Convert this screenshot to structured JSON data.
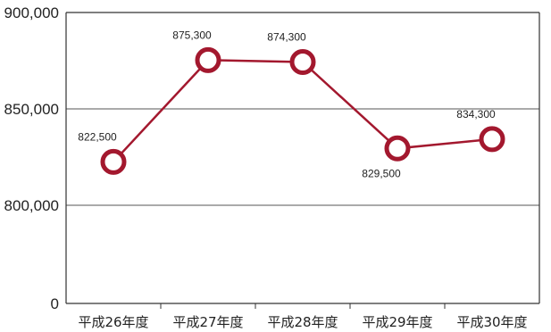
{
  "chart_data": {
    "type": "line",
    "title": "",
    "xlabel": "",
    "ylabel": "",
    "categories": [
      "平成26年度",
      "平成27年度",
      "平成28年度",
      "平成29年度",
      "平成30年度"
    ],
    "series": [
      {
        "values": [
          822500,
          875300,
          874300,
          829500,
          834300
        ],
        "labels": [
          "822,500",
          "875,300",
          "874,300",
          "829,500",
          "834,300"
        ]
      }
    ],
    "y_ticks": [
      {
        "value": 0,
        "label": "0"
      },
      {
        "value": 800000,
        "label": "800,000"
      },
      {
        "value": 850000,
        "label": "850,000"
      },
      {
        "value": 900000,
        "label": "900,000"
      }
    ],
    "axis_break": "y-axis jumps from 0 to 800,000",
    "ylim": [
      0,
      900000
    ],
    "grid": true,
    "legend": "none",
    "colors": {
      "line": "#a3182e",
      "marker_fill": "#ffffff",
      "grid": "#555555",
      "axis": "#333333"
    }
  }
}
